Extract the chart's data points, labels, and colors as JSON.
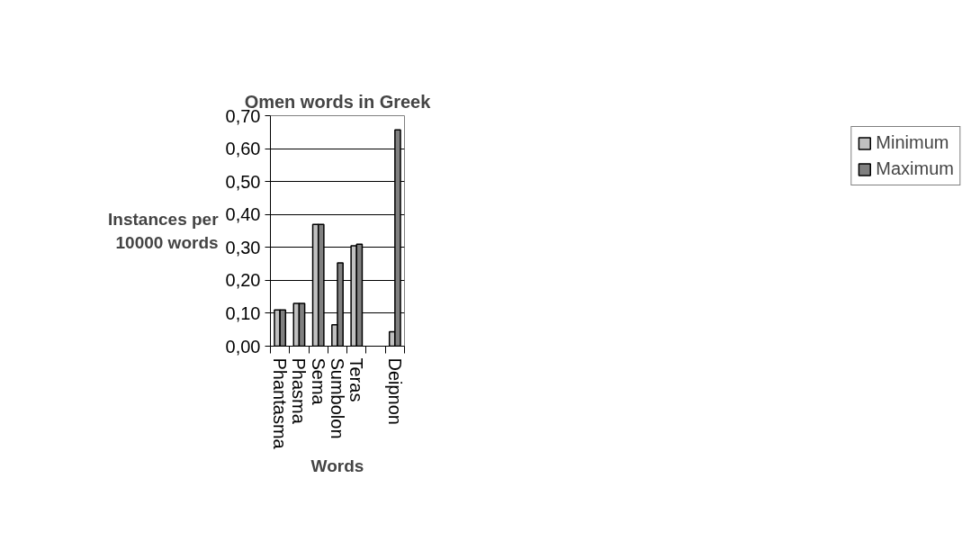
{
  "chart_data": {
    "type": "bar",
    "title": "Omen words in Greek",
    "xlabel": "Words",
    "ylabel": "Instances per 10000 words",
    "categories": [
      "Phantasma",
      "Phasma",
      "Sema",
      "Sumbolon",
      "Teras",
      null,
      "Deipnon"
    ],
    "series": [
      {
        "name": "Minimum",
        "color": "#c0c0c0",
        "values": [
          0.11,
          0.13,
          0.37,
          0.065,
          0.305,
          null,
          0.044
        ]
      },
      {
        "name": "Maximum",
        "color": "#808080",
        "values": [
          0.11,
          0.13,
          0.37,
          0.253,
          0.31,
          null,
          0.657
        ]
      }
    ],
    "ylim": [
      0,
      0.7
    ],
    "yticks": [
      {
        "value": 0,
        "label": "0,00"
      },
      {
        "value": 0.1,
        "label": "0,10"
      },
      {
        "value": 0.2,
        "label": "0,20"
      },
      {
        "value": 0.3,
        "label": "0,30"
      },
      {
        "value": 0.4,
        "label": "0,40"
      },
      {
        "value": 0.5,
        "label": "0,50"
      },
      {
        "value": 0.6,
        "label": "0,60"
      },
      {
        "value": 0.7,
        "label": "0,70"
      }
    ],
    "grid": "y",
    "legend": "right"
  }
}
